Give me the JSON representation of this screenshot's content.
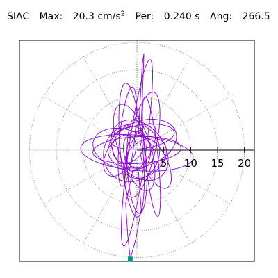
{
  "header": {
    "station": "SIAC",
    "max_label": "Max:",
    "max_value": "20.3 cm/s",
    "max_exp": "2",
    "per_label": "Per:",
    "per_value": "0.240 s",
    "ang_label": "Ang:",
    "ang_value": "266.5"
  },
  "chart_data": {
    "type": "polar-particle-motion",
    "rlim": [
      0,
      20.3
    ],
    "r_ticks": [
      5,
      10,
      15,
      20
    ],
    "r_tick_labels": [
      "5",
      "10",
      "15",
      "20"
    ],
    "angle_grid_deg": [
      0,
      30,
      60,
      90,
      120,
      150,
      180,
      210,
      240,
      270,
      300,
      330
    ],
    "peak": {
      "amplitude": 20.3,
      "angle_deg": 266.5
    },
    "grid": true,
    "colors": {
      "trace": "#8800cc",
      "peak_marker": "#009977",
      "grid": "#777777",
      "axis": "#000000"
    }
  }
}
